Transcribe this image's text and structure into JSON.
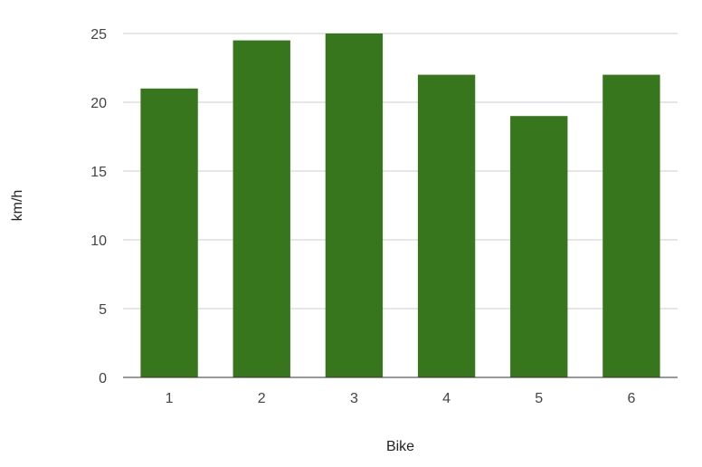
{
  "chart_data": {
    "type": "bar",
    "title": "",
    "xlabel": "Bike",
    "ylabel": "km/h",
    "categories": [
      "1",
      "2",
      "3",
      "4",
      "5",
      "6"
    ],
    "values": [
      21,
      24.5,
      25,
      22,
      19,
      22
    ],
    "ylim": [
      0,
      25
    ],
    "yticks": [
      "0",
      "5",
      "10",
      "15",
      "20",
      "25"
    ],
    "grid": true,
    "legend": "none",
    "bar_color": "#38761d"
  }
}
